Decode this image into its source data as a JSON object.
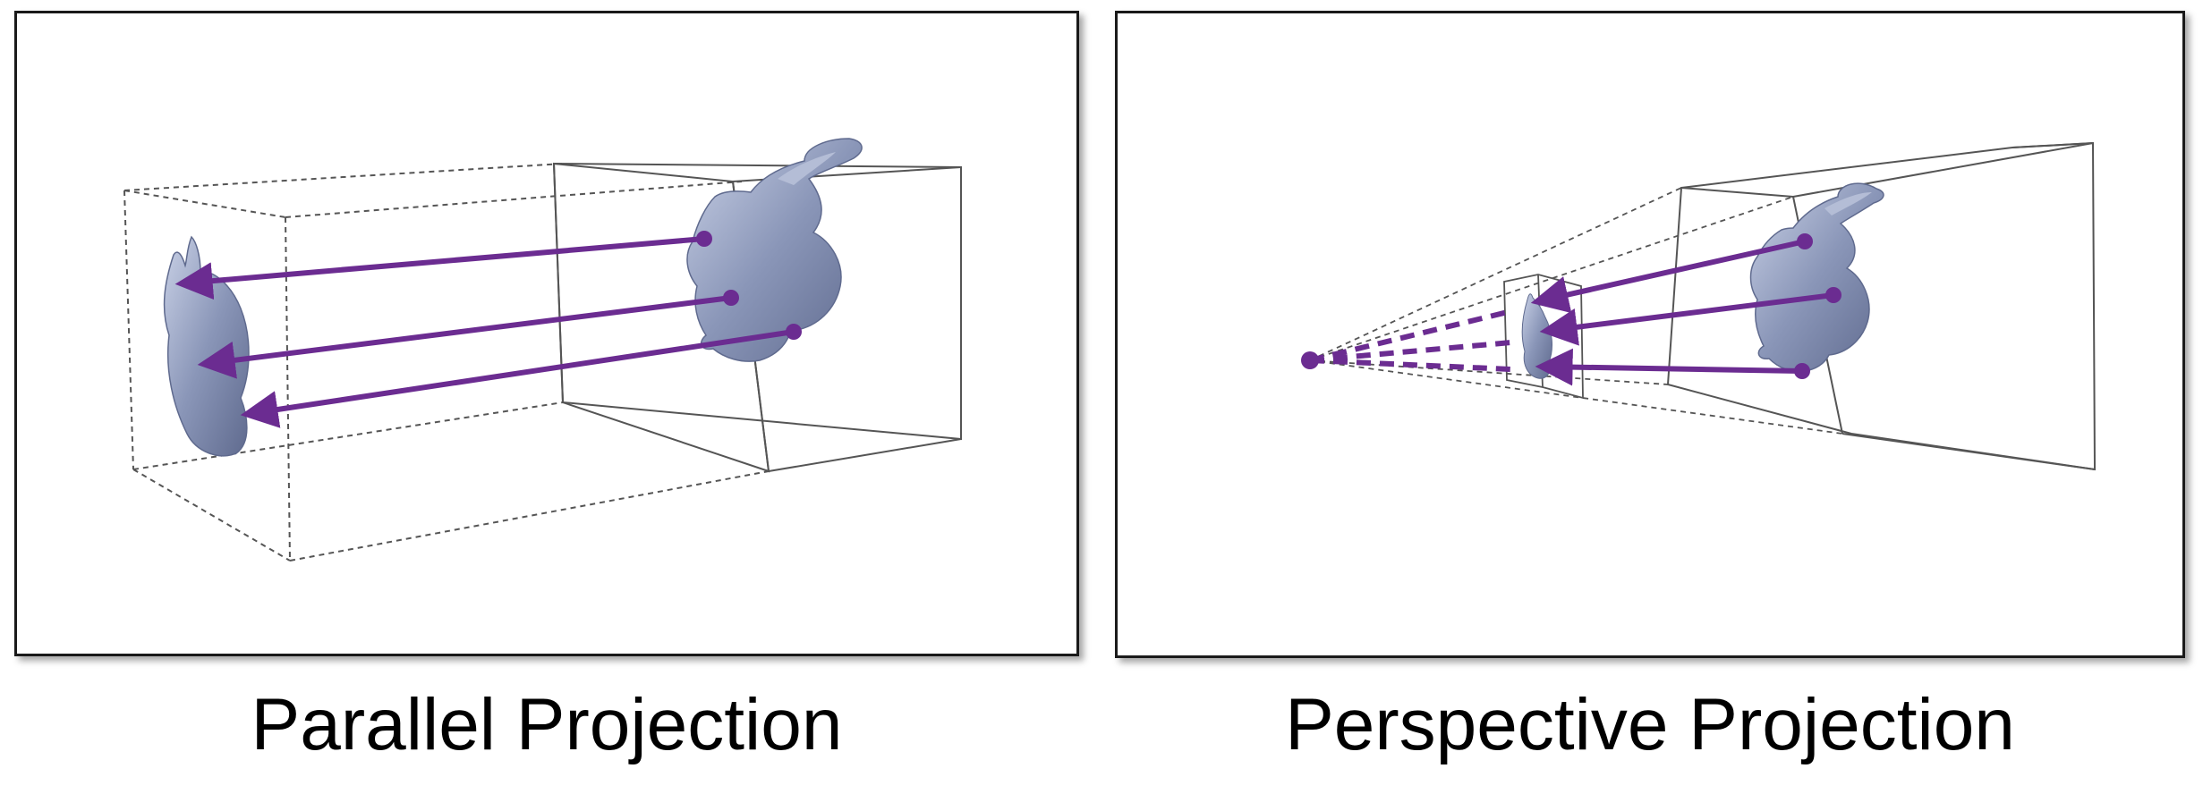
{
  "colors": {
    "arrow": "#6b2c91",
    "bunny": "#8a96b8",
    "bunny_dark": "#5f6a8e",
    "bunny_light": "#c9d1e6",
    "box_line": "#444444",
    "frame": "#1a1a1a"
  },
  "panels": [
    {
      "id": "parallel",
      "caption": "Parallel Projection"
    },
    {
      "id": "perspective",
      "caption": "Perspective Projection"
    }
  ]
}
